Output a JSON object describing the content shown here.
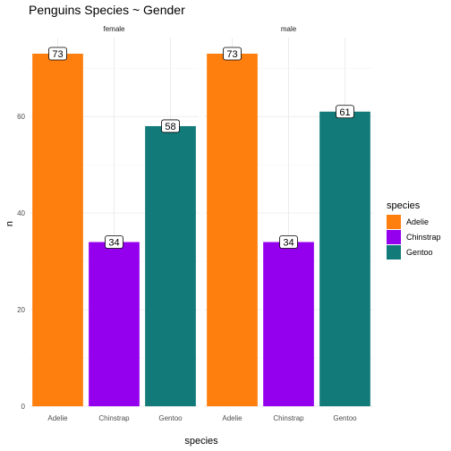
{
  "chart_data": {
    "type": "bar",
    "title": "Penguins Species ~ Gender",
    "xlabel": "species",
    "ylabel": "n",
    "ylim": [
      0,
      73
    ],
    "yticks": [
      0,
      20,
      40,
      60
    ],
    "grid": true,
    "legend": {
      "title": "species",
      "placement": "right",
      "entries": [
        {
          "name": "Adelie",
          "color": "#FF7F0E"
        },
        {
          "name": "Chinstrap",
          "color": "#9400EE"
        },
        {
          "name": "Gentoo",
          "color": "#137A7A"
        }
      ]
    },
    "categories": [
      "Adelie",
      "Chinstrap",
      "Gentoo"
    ],
    "facets": [
      {
        "label": "female",
        "values": [
          73,
          34,
          58
        ]
      },
      {
        "label": "male",
        "values": [
          73,
          34,
          61
        ]
      }
    ]
  }
}
